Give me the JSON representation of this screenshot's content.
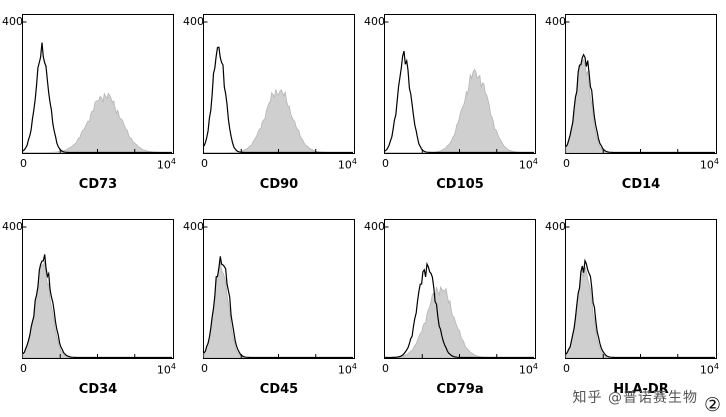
{
  "chart_data": {
    "type": "histogram-grid",
    "title": "",
    "description": "Flow cytometry surface-marker histograms (2 rows x 4 columns). Black open curve = control; gray filled curve = marker staining. CD73/CD90/CD105 show a right-shifted gray peak (positive); CD14/CD34/CD45/CD79a/HLA-DR gray peaks overlap the control (negative).",
    "y_axis": {
      "top_tick_label": "400"
    },
    "x_axis": {
      "min_label": "0",
      "max_base": "10",
      "max_exponent": "4",
      "scale": "log"
    },
    "fill_color": "#cfcfcf",
    "fill_stroke": "#b5b5b5",
    "outline_color": "#000000",
    "panels": [
      {
        "marker": "CD73",
        "result": "positive",
        "open_peak": {
          "center": 0.13,
          "sigma": 0.045,
          "height": 0.8
        },
        "filled_peak": {
          "center": 0.55,
          "sigma": 0.105,
          "height": 0.46
        }
      },
      {
        "marker": "CD90",
        "result": "positive",
        "open_peak": {
          "center": 0.1,
          "sigma": 0.042,
          "height": 0.84
        },
        "filled_peak": {
          "center": 0.5,
          "sigma": 0.09,
          "height": 0.5
        }
      },
      {
        "marker": "CD105",
        "result": "positive",
        "open_peak": {
          "center": 0.13,
          "sigma": 0.045,
          "height": 0.76
        },
        "filled_peak": {
          "center": 0.61,
          "sigma": 0.085,
          "height": 0.64
        }
      },
      {
        "marker": "CD14",
        "result": "negative",
        "open_peak": {
          "center": 0.12,
          "sigma": 0.05,
          "height": 0.8
        },
        "filled_peak": {
          "center": 0.115,
          "sigma": 0.048,
          "height": 0.76
        }
      },
      {
        "marker": "CD34",
        "result": "negative",
        "open_peak": {
          "center": 0.14,
          "sigma": 0.055,
          "height": 0.78
        },
        "filled_peak": {
          "center": 0.135,
          "sigma": 0.053,
          "height": 0.74
        }
      },
      {
        "marker": "CD45",
        "result": "negative",
        "open_peak": {
          "center": 0.12,
          "sigma": 0.048,
          "height": 0.8
        },
        "filled_peak": {
          "center": 0.115,
          "sigma": 0.046,
          "height": 0.75
        }
      },
      {
        "marker": "CD79a",
        "result": "negative",
        "open_peak": {
          "center": 0.28,
          "sigma": 0.06,
          "height": 0.74
        },
        "filled_peak": {
          "center": 0.37,
          "sigma": 0.09,
          "height": 0.56
        }
      },
      {
        "marker": "HLA-DR",
        "result": "negative",
        "open_peak": {
          "center": 0.13,
          "sigma": 0.05,
          "height": 0.78
        },
        "filled_peak": {
          "center": 0.125,
          "sigma": 0.048,
          "height": 0.73
        }
      }
    ]
  },
  "watermark": {
    "text": "知乎 @普诺赛生物",
    "badge": "②"
  }
}
